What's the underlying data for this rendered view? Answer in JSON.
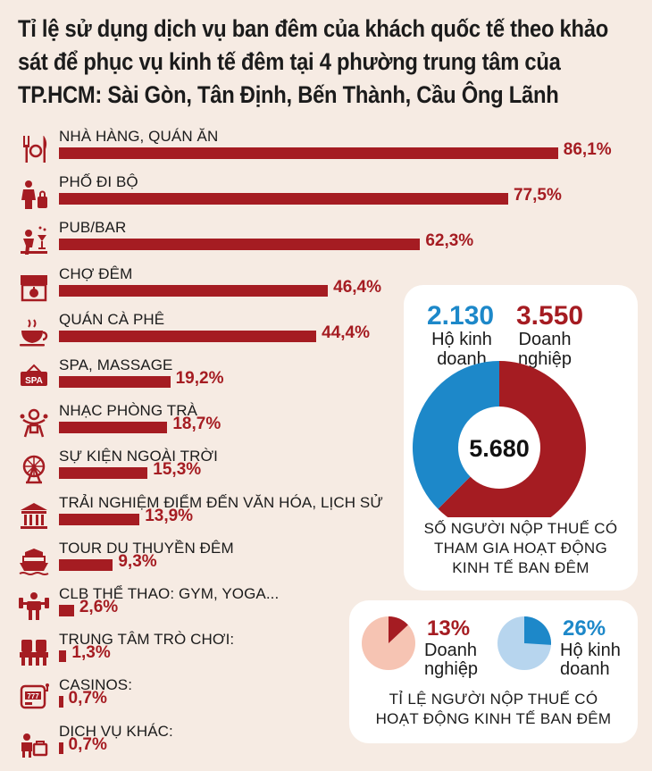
{
  "title": "Tỉ lệ sử dụng dịch vụ ban đêm của khách quốc tế theo khảo sát để phục vụ kinh tế đêm tại 4 phường trung tâm của TP.HCM: Sài Gòn, Tân Định, Bến Thành, Cầu Ông Lãnh",
  "colors": {
    "accent": "#a51c22",
    "blue": "#1d88c9",
    "pink": "#f6c4b3",
    "lightblue": "#b7d5ee",
    "background": "#f6ebe3"
  },
  "chart_data": [
    {
      "type": "bar",
      "orientation": "horizontal",
      "categories": [
        "NHÀ HÀNG, QUÁN ĂN",
        "PHỐ ĐI BỘ",
        "PUB/BAR",
        "CHỢ ĐÊM",
        "QUÁN CÀ PHÊ",
        "SPA, MASSAGE",
        "NHẠC PHÒNG TRÀ",
        "SỰ KIỆN NGOÀI TRỜI",
        "TRẢI NGHIỆM ĐIỂM ĐẾN VĂN HÓA, LỊCH SỬ",
        "TOUR DU THUYỀN ĐÊM",
        "CLB THỂ THAO: GYM, YOGA...",
        "TRUNG TÂM TRÒ CHƠI",
        "CASINOS",
        "DỊCH VỤ KHÁC"
      ],
      "label_text": [
        "NHÀ HÀNG, QUÁN ĂN",
        "PHỐ ĐI BỘ",
        "PUB/BAR",
        "CHỢ ĐÊM",
        "QUÁN CÀ PHÊ",
        "SPA, MASSAGE",
        "NHẠC PHÒNG TRÀ",
        "SỰ KIỆN NGOÀI TRỜI",
        "TRẢI NGHIỆM ĐIỂM ĐẾN VĂN HÓA, LỊCH SỬ",
        "TOUR DU THUYỀN ĐÊM",
        "CLB THỂ THAO: GYM, YOGA...",
        "TRUNG TÂM TRÒ CHƠI:",
        "CASINOS:",
        "DỊCH VỤ KHÁC:"
      ],
      "values": [
        86.1,
        77.5,
        62.3,
        46.4,
        44.4,
        19.2,
        18.7,
        15.3,
        13.9,
        9.3,
        2.6,
        1.3,
        0.7,
        0.7
      ],
      "value_labels": [
        "86,1%",
        "77,5%",
        "62,3%",
        "46,4%",
        "44,4%",
        "19,2%",
        "18,7%",
        "15,3%",
        "13,9%",
        "9,3%",
        "2,6%",
        "1,3%",
        "0,7%",
        "0,7%"
      ],
      "icons": [
        "fork-knife-icon",
        "walking-street-icon",
        "pub-bar-icon",
        "market-stall-icon",
        "coffee-cup-icon",
        "spa-sign-icon",
        "music-performer-icon",
        "ferris-wheel-icon",
        "museum-icon",
        "cruise-boat-icon",
        "dumbbell-icon",
        "arcade-icon",
        "slot-machine-icon",
        "other-service-icon"
      ]
    },
    {
      "type": "pie",
      "variant": "donut",
      "total": 5680,
      "total_label": "5.680",
      "slices": [
        {
          "name": "Hộ kinh doanh",
          "value": 2130,
          "label": "2.130",
          "color": "#1d88c9"
        },
        {
          "name": "Doanh nghiệp",
          "value": 3550,
          "label": "3.550",
          "color": "#a51c22"
        }
      ],
      "caption": "SỐ NGƯỜI NỘP THUẾ CÓ THAM GIA HOẠT ĐỘNG KINH TẾ BAN ĐÊM"
    },
    {
      "type": "pie",
      "slices": [
        {
          "name": "Doanh nghiệp",
          "value": 13,
          "label": "13%",
          "color": "#a51c22",
          "rest_color": "#f6c4b3"
        },
        {
          "name": "Hộ kinh doanh",
          "value": 26,
          "label": "26%",
          "color": "#1d88c9",
          "rest_color": "#b7d5ee"
        }
      ],
      "caption": "TỈ LỆ NGƯỜI NỘP THUẾ CÓ HOẠT ĐỘNG KINH TẾ BAN ĐÊM"
    }
  ],
  "donut": {
    "household": {
      "value": "2.130",
      "line1": "Hộ kinh",
      "line2": "doanh"
    },
    "enterprise": {
      "value": "3.550",
      "line1": "Doanh",
      "line2": "nghiệp"
    },
    "total": "5.680",
    "caption_1": "SỐ NGƯỜI NỘP THUẾ CÓ",
    "caption_2": "THAM GIA HOẠT ĐỘNG",
    "caption_3": "KINH TẾ BAN ĐÊM"
  },
  "pies": {
    "enterprise": {
      "value": "13%",
      "line1": "Doanh",
      "line2": "nghiệp"
    },
    "household": {
      "value": "26%",
      "line1": "Hộ kinh",
      "line2": "doanh"
    },
    "caption_1": "TỈ LỆ NGƯỜI NỘP THUẾ CÓ",
    "caption_2": "HOẠT ĐỘNG KINH TẾ BAN ĐÊM"
  }
}
